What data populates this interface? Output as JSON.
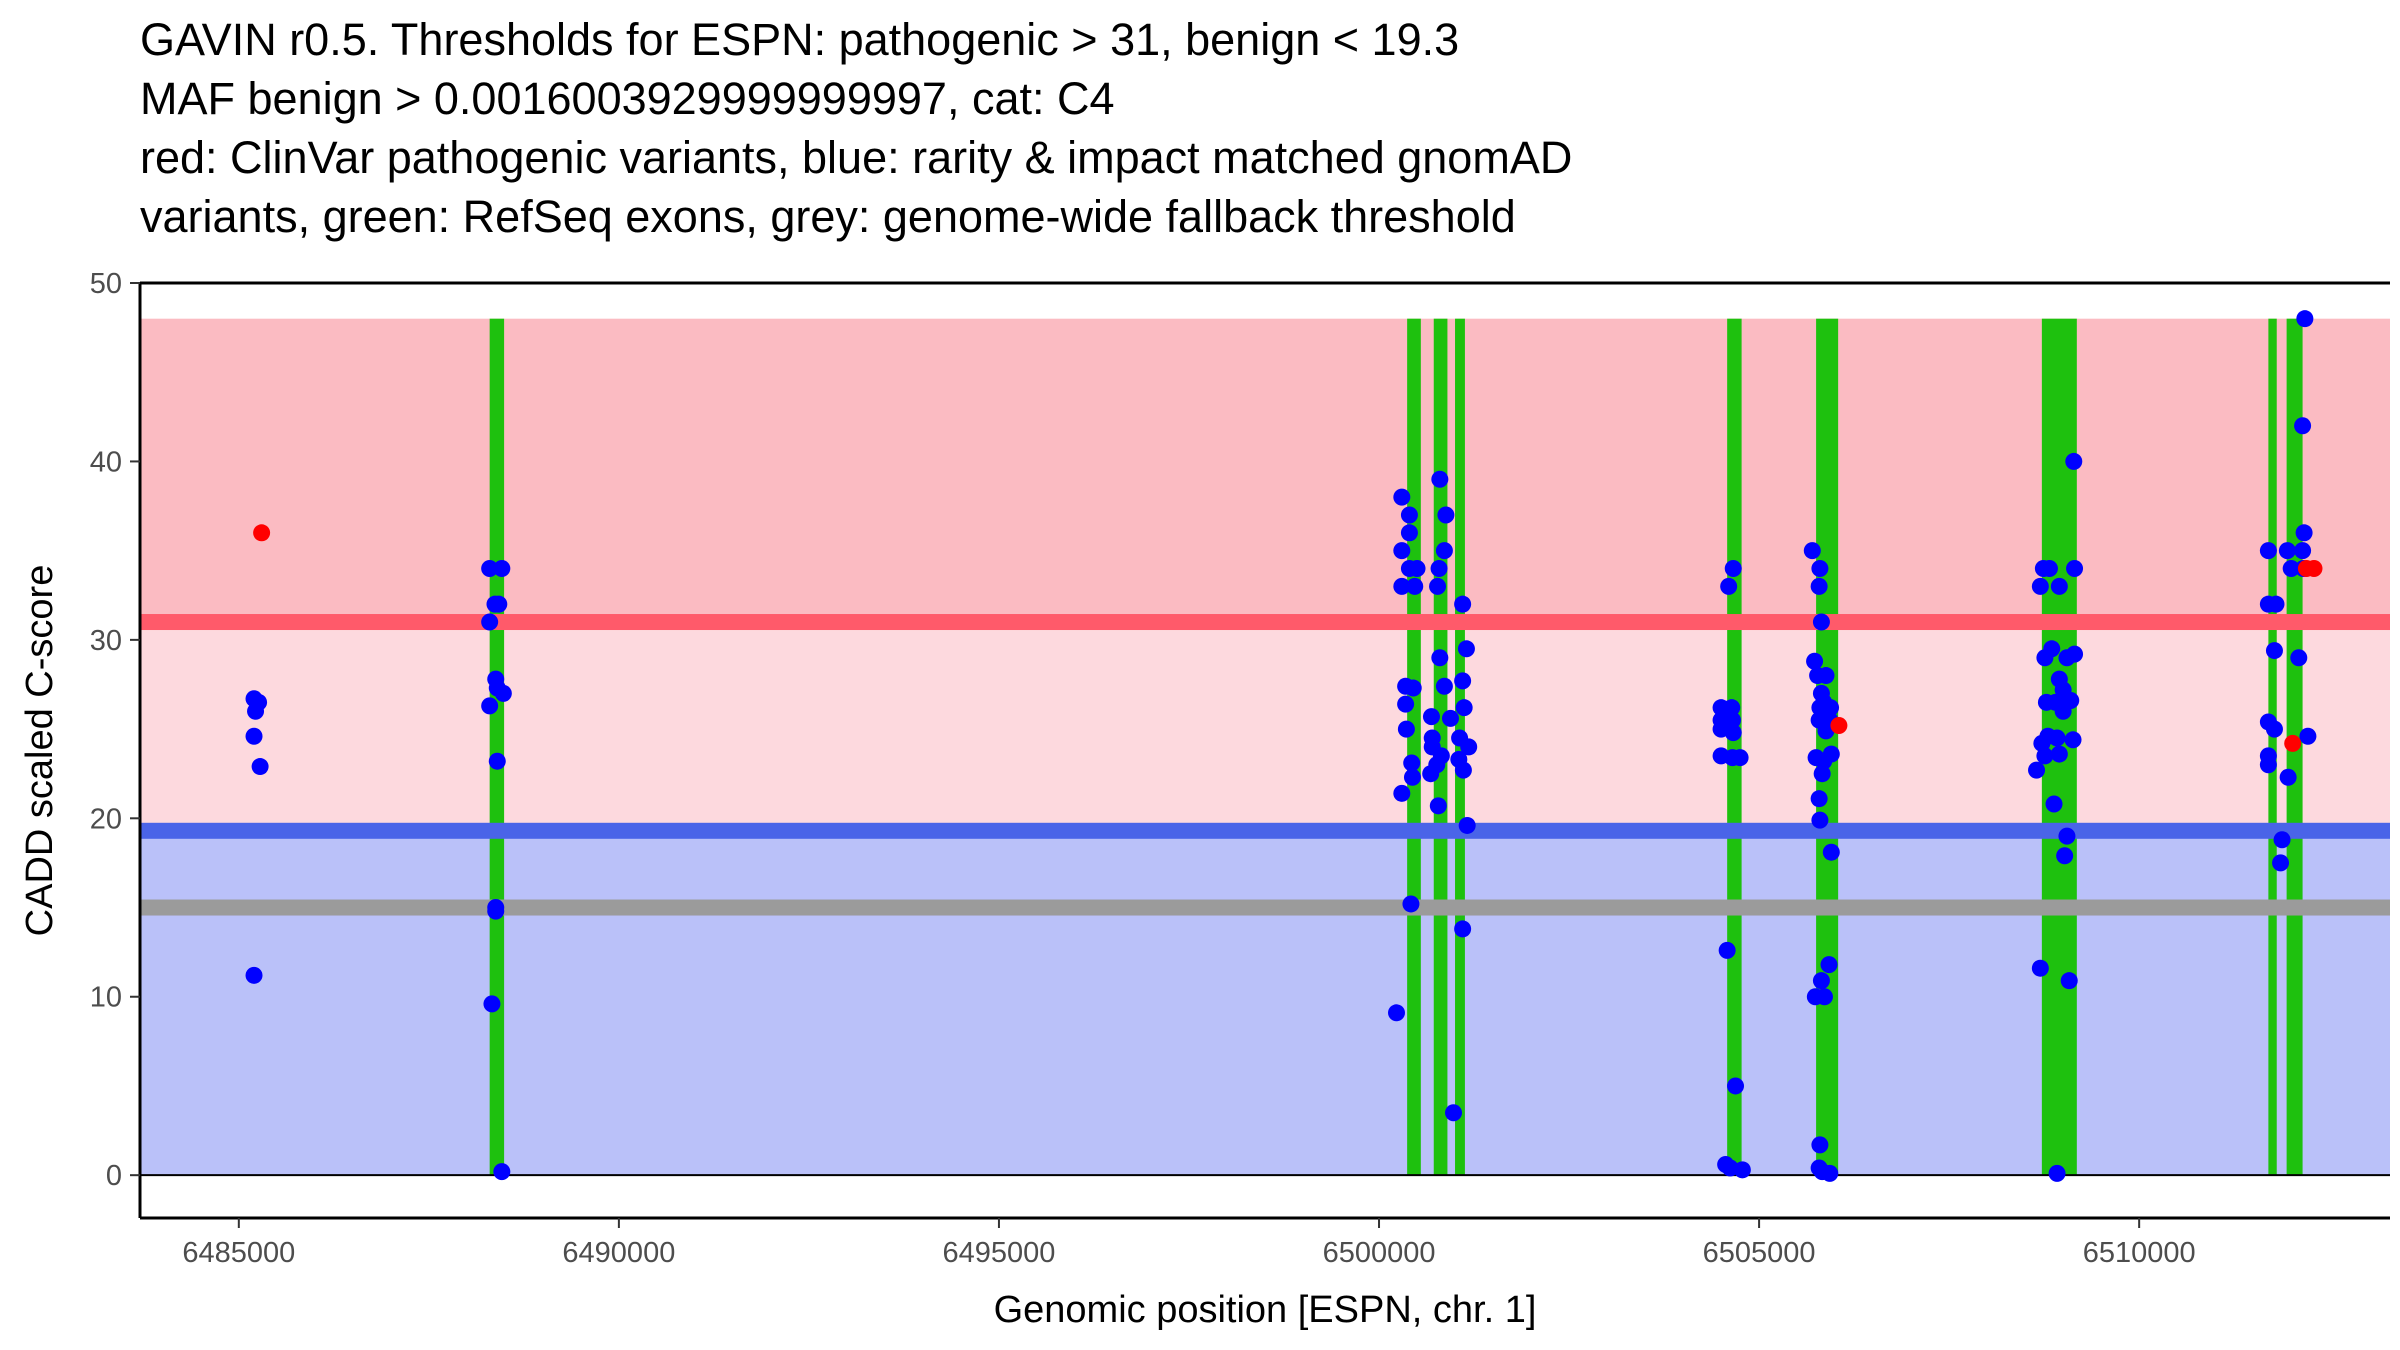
{
  "title_lines": [
    "GAVIN r0.5. Thresholds for ESPN: pathogenic > 31, benign < 19.3",
    "MAF benign > 0.0016003929999999997, cat: C4",
    "red: ClinVar pathogenic variants, blue: rarity & impact matched gnomAD",
    "variants, green: RefSeq exons, grey: genome-wide fallback threshold"
  ],
  "chart_data": {
    "type": "scatter",
    "xlabel": "Genomic position [ESPN, chr. 1]",
    "ylabel": "CADD scaled C-score",
    "xlim": [
      6483700,
      6513300
    ],
    "ylim": [
      -2.4,
      50
    ],
    "x_ticks": [
      6485000,
      6490000,
      6495000,
      6500000,
      6505000,
      6510000
    ],
    "y_ticks": [
      0,
      10,
      20,
      30,
      40,
      50
    ],
    "thresholds": {
      "pathogenic": 31,
      "benign": 19.3,
      "fallback": 15,
      "region_max": 48
    },
    "colors": {
      "pathogenic_region": "#fbbbc2",
      "middle_region": "#fdd9de",
      "benign_region": "#bac1f9",
      "pathogenic_line": "#ff5a6a",
      "benign_line": "#4a64e8",
      "fallback_line": "#9b9b9b",
      "exon": "#1ec10e",
      "gnomad": "#0000ff",
      "clinvar": "#ff0000"
    },
    "exons": [
      {
        "start": 6488300,
        "end": 6488490
      },
      {
        "start": 6500370,
        "end": 6500550
      },
      {
        "start": 6500720,
        "end": 6500900
      },
      {
        "start": 6501000,
        "end": 6501130
      },
      {
        "start": 6504580,
        "end": 6504770
      },
      {
        "start": 6505750,
        "end": 6506040
      },
      {
        "start": 6508720,
        "end": 6509180
      },
      {
        "start": 6511700,
        "end": 6511810
      },
      {
        "start": 6511940,
        "end": 6512150
      }
    ],
    "series": [
      {
        "name": "gnomAD rarity & impact matched variants",
        "color": "#0000ff",
        "points": [
          [
            6485200,
            26.7
          ],
          [
            6485220,
            26
          ],
          [
            6485260,
            26.5
          ],
          [
            6485200,
            24.6
          ],
          [
            6485280,
            22.9
          ],
          [
            6485200,
            11.2
          ],
          [
            6488300,
            34
          ],
          [
            6488460,
            34
          ],
          [
            6488300,
            31
          ],
          [
            6488370,
            32
          ],
          [
            6488420,
            32
          ],
          [
            6488380,
            27.8
          ],
          [
            6488400,
            27.3
          ],
          [
            6488480,
            27
          ],
          [
            6488300,
            26.3
          ],
          [
            6488400,
            23.2
          ],
          [
            6488380,
            15
          ],
          [
            6488380,
            14.8
          ],
          [
            6488330,
            9.6
          ],
          [
            6488460,
            0.2
          ],
          [
            6500300,
            38
          ],
          [
            6500400,
            37
          ],
          [
            6500400,
            36
          ],
          [
            6500300,
            35
          ],
          [
            6500400,
            34
          ],
          [
            6500500,
            34
          ],
          [
            6500300,
            33
          ],
          [
            6500470,
            33
          ],
          [
            6500350,
            27.4
          ],
          [
            6500450,
            27.3
          ],
          [
            6500350,
            26.4
          ],
          [
            6500360,
            25
          ],
          [
            6500430,
            23.1
          ],
          [
            6500440,
            22.3
          ],
          [
            6500300,
            21.4
          ],
          [
            6500420,
            15.2
          ],
          [
            6500230,
            9.1
          ],
          [
            6500800,
            39
          ],
          [
            6500880,
            37
          ],
          [
            6500860,
            35
          ],
          [
            6500790,
            34
          ],
          [
            6500770,
            33
          ],
          [
            6500800,
            29
          ],
          [
            6500860,
            27.4
          ],
          [
            6500690,
            25.7
          ],
          [
            6500940,
            25.6
          ],
          [
            6500700,
            24.5
          ],
          [
            6500700,
            24
          ],
          [
            6500820,
            23.5
          ],
          [
            6500760,
            23
          ],
          [
            6500680,
            22.5
          ],
          [
            6500780,
            20.7
          ],
          [
            6500980,
            3.5
          ],
          [
            6501100,
            32
          ],
          [
            6501150,
            29.5
          ],
          [
            6501100,
            27.7
          ],
          [
            6501120,
            26.2
          ],
          [
            6501060,
            24.5
          ],
          [
            6501180,
            24
          ],
          [
            6501050,
            23.3
          ],
          [
            6501110,
            22.7
          ],
          [
            6501160,
            19.6
          ],
          [
            6501100,
            13.8
          ],
          [
            6504500,
            26.2
          ],
          [
            6504640,
            26.2
          ],
          [
            6504500,
            25.5
          ],
          [
            6504650,
            25.5
          ],
          [
            6504500,
            25
          ],
          [
            6504660,
            24.8
          ],
          [
            6504500,
            23.5
          ],
          [
            6504650,
            23.4
          ],
          [
            6504750,
            23.4
          ],
          [
            6504660,
            34
          ],
          [
            6504600,
            33
          ],
          [
            6504580,
            12.6
          ],
          [
            6504690,
            5
          ],
          [
            6504560,
            0.6
          ],
          [
            6504620,
            0.4
          ],
          [
            6504780,
            0.3
          ],
          [
            6505700,
            35
          ],
          [
            6505800,
            34
          ],
          [
            6505790,
            33
          ],
          [
            6505820,
            31
          ],
          [
            6505730,
            28.8
          ],
          [
            6505770,
            28
          ],
          [
            6505880,
            28
          ],
          [
            6505820,
            27
          ],
          [
            6505850,
            26.5
          ],
          [
            6505800,
            26.2
          ],
          [
            6505940,
            26.2
          ],
          [
            6505790,
            25.5
          ],
          [
            6505930,
            25.5
          ],
          [
            6505880,
            24.9
          ],
          [
            6505750,
            23.4
          ],
          [
            6505850,
            23.2
          ],
          [
            6505950,
            23.6
          ],
          [
            6505830,
            22.5
          ],
          [
            6505790,
            21.1
          ],
          [
            6505800,
            19.9
          ],
          [
            6505950,
            18.1
          ],
          [
            6505920,
            11.8
          ],
          [
            6505820,
            10.9
          ],
          [
            6505740,
            10
          ],
          [
            6505860,
            10
          ],
          [
            6505800,
            1.7
          ],
          [
            6505790,
            0.4
          ],
          [
            6505830,
            0.2
          ],
          [
            6505930,
            0.1
          ],
          [
            6508700,
            33
          ],
          [
            6508740,
            34
          ],
          [
            6508820,
            34
          ],
          [
            6508950,
            33
          ],
          [
            6509150,
            34
          ],
          [
            6508760,
            29
          ],
          [
            6508850,
            29.5
          ],
          [
            6509050,
            29
          ],
          [
            6509150,
            29.2
          ],
          [
            6508950,
            27.8
          ],
          [
            6509000,
            27.2
          ],
          [
            6508900,
            26.5
          ],
          [
            6508780,
            26.5
          ],
          [
            6509100,
            26.6
          ],
          [
            6509000,
            26
          ],
          [
            6508800,
            24.6
          ],
          [
            6508720,
            24.2
          ],
          [
            6508920,
            24.5
          ],
          [
            6509130,
            24.4
          ],
          [
            6508950,
            23.6
          ],
          [
            6508760,
            23.5
          ],
          [
            6508650,
            22.7
          ],
          [
            6508880,
            20.8
          ],
          [
            6509050,
            19
          ],
          [
            6509020,
            17.9
          ],
          [
            6508700,
            11.6
          ],
          [
            6509080,
            10.9
          ],
          [
            6508920,
            0.1
          ],
          [
            6509140,
            40
          ],
          [
            6511700,
            35
          ],
          [
            6511700,
            32
          ],
          [
            6511800,
            32
          ],
          [
            6511780,
            29.4
          ],
          [
            6511700,
            25.4
          ],
          [
            6511780,
            25
          ],
          [
            6511700,
            23.5
          ],
          [
            6511700,
            23
          ],
          [
            6511950,
            35
          ],
          [
            6512150,
            35
          ],
          [
            6512000,
            34
          ],
          [
            6512160,
            34
          ],
          [
            6512170,
            36
          ],
          [
            6512150,
            42
          ],
          [
            6512180,
            48
          ],
          [
            6512100,
            29
          ],
          [
            6512220,
            24.6
          ],
          [
            6511960,
            22.3
          ],
          [
            6511880,
            18.8
          ],
          [
            6511860,
            17.5
          ]
        ]
      },
      {
        "name": "ClinVar pathogenic variants",
        "color": "#ff0000",
        "points": [
          [
            6485300,
            36
          ],
          [
            6506050,
            25.2
          ],
          [
            6512020,
            24.2
          ],
          [
            6512200,
            34
          ],
          [
            6512300,
            34
          ]
        ]
      }
    ]
  }
}
